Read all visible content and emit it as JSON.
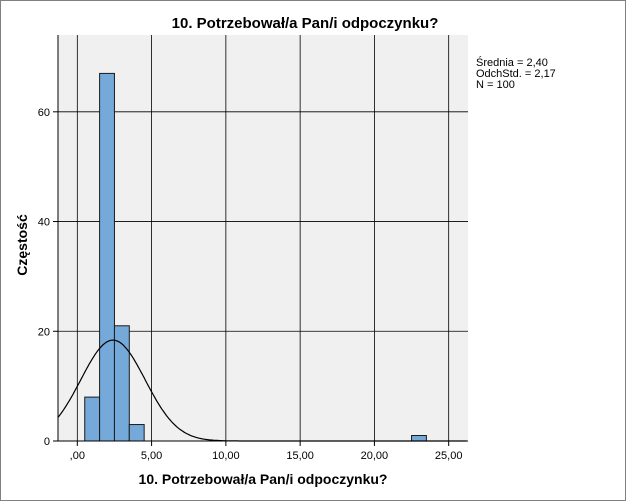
{
  "chart_data": {
    "type": "histogram",
    "title": "10. Potrzebował/a Pan/i odpoczynku?",
    "xlabel": "10. Potrzebował/a Pan/i odpoczynku?",
    "ylabel": "Częstość",
    "xlim": [
      -1.3,
      26.3
    ],
    "ylim": [
      0,
      74
    ],
    "x_ticks": [
      0,
      5,
      10,
      15,
      20,
      25
    ],
    "x_tick_labels": [
      ",00",
      "5,00",
      "10,00",
      "15,00",
      "20,00",
      "25,00"
    ],
    "y_ticks": [
      0,
      20,
      40,
      60
    ],
    "y_tick_labels": [
      "0",
      "20",
      "40",
      "60"
    ],
    "bin_width": 1,
    "bins": [
      {
        "x0": 0.5,
        "x1": 1.5,
        "count": 8
      },
      {
        "x0": 1.5,
        "x1": 2.5,
        "count": 67
      },
      {
        "x0": 2.5,
        "x1": 3.5,
        "count": 21
      },
      {
        "x0": 3.5,
        "x1": 4.5,
        "count": 3
      },
      {
        "x0": 22.5,
        "x1": 23.5,
        "count": 1
      }
    ],
    "normal_curve": {
      "mean": 2.4,
      "sd": 2.17,
      "n": 100
    },
    "grid": true,
    "colors": {
      "bar_fill": "#74a9d9",
      "bar_stroke": "#1a1a1a",
      "plot_bg": "#f0f0f0",
      "grid": "#000000",
      "curve": "#000000"
    },
    "stats": [
      "Średnia = 2,40",
      "OdchStd. = 2,17",
      "N = 100"
    ]
  }
}
